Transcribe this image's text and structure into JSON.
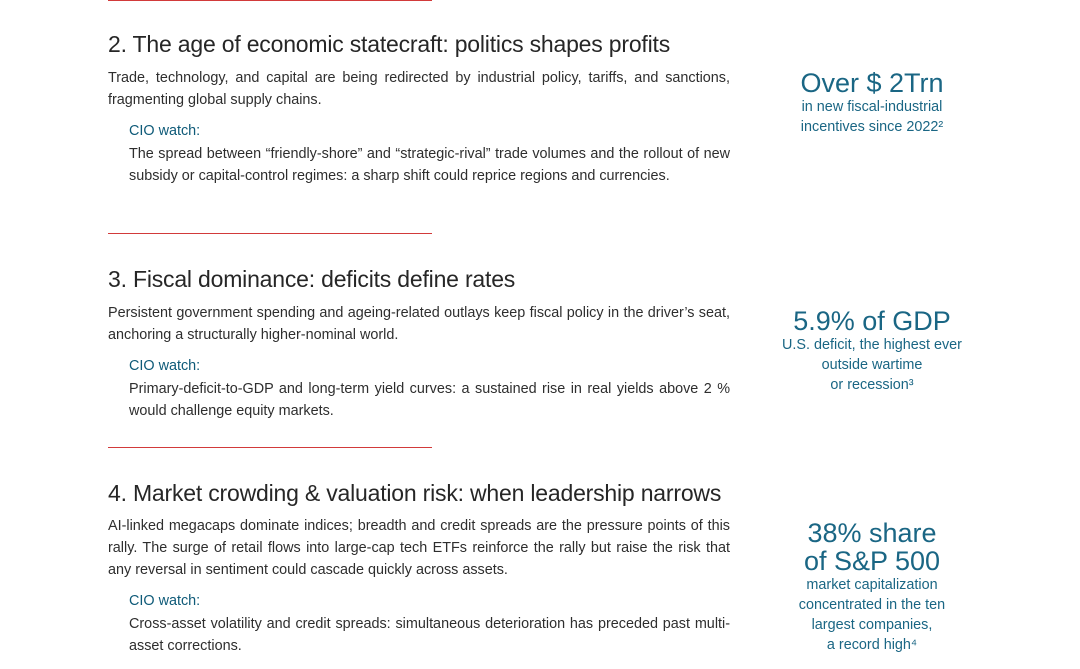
{
  "sections": [
    {
      "title": "2. The age of economic statecraft: politics shapes profits",
      "body": "Trade, technology, and capital are being redirected by industrial policy, tariffs, and sanctions, fragmenting global supply chains.",
      "cio_label": "CIO watch:",
      "cio_text": "The spread between “friendly-shore” and “strategic-rival” trade volumes and the rollout of new subsidy or capital-control regimes: a sharp shift could reprice regions and currencies.",
      "stat_value": "Over $ 2Trn",
      "stat_caption_lines": [
        "in new fiscal-industrial",
        "incentives since 2022²"
      ]
    },
    {
      "title": "3. Fiscal dominance: deficits define rates",
      "body": "Persistent government spending and ageing-related outlays keep fiscal policy in the driver’s seat, anchoring a structurally higher-nominal world.",
      "cio_label": "CIO watch:",
      "cio_text": "Primary-deficit-to-GDP and long-term yield curves: a sustained rise in real yields above 2 % would challenge equity markets.",
      "stat_value": "5.9% of GDP",
      "stat_caption_lines": [
        "U.S. deficit, the highest ever",
        "outside wartime",
        "or recession³"
      ]
    },
    {
      "title": "4. Market crowding & valuation risk: when leadership narrows",
      "body": "AI-linked megacaps dominate indices; breadth and credit spreads are the pressure points of this rally. The surge of retail flows into large-cap tech ETFs reinforce the rally but raise the risk that any reversal in sentiment could cascade quickly across assets.",
      "cio_label": "CIO watch:",
      "cio_text": "Cross-asset volatility and credit spreads: simultaneous deterioration has preceded past multi-asset corrections.",
      "stat_value_lines": [
        "38% share",
        "of S&P 500"
      ],
      "stat_caption_lines": [
        "market capitalization",
        "concentrated in the ten",
        "largest companies,",
        "a record high⁴"
      ]
    }
  ],
  "colors": {
    "divider": "#d23a3a",
    "accent": "#1a6684",
    "cio_label": "#0e5a78",
    "text": "#2e2e2e"
  }
}
